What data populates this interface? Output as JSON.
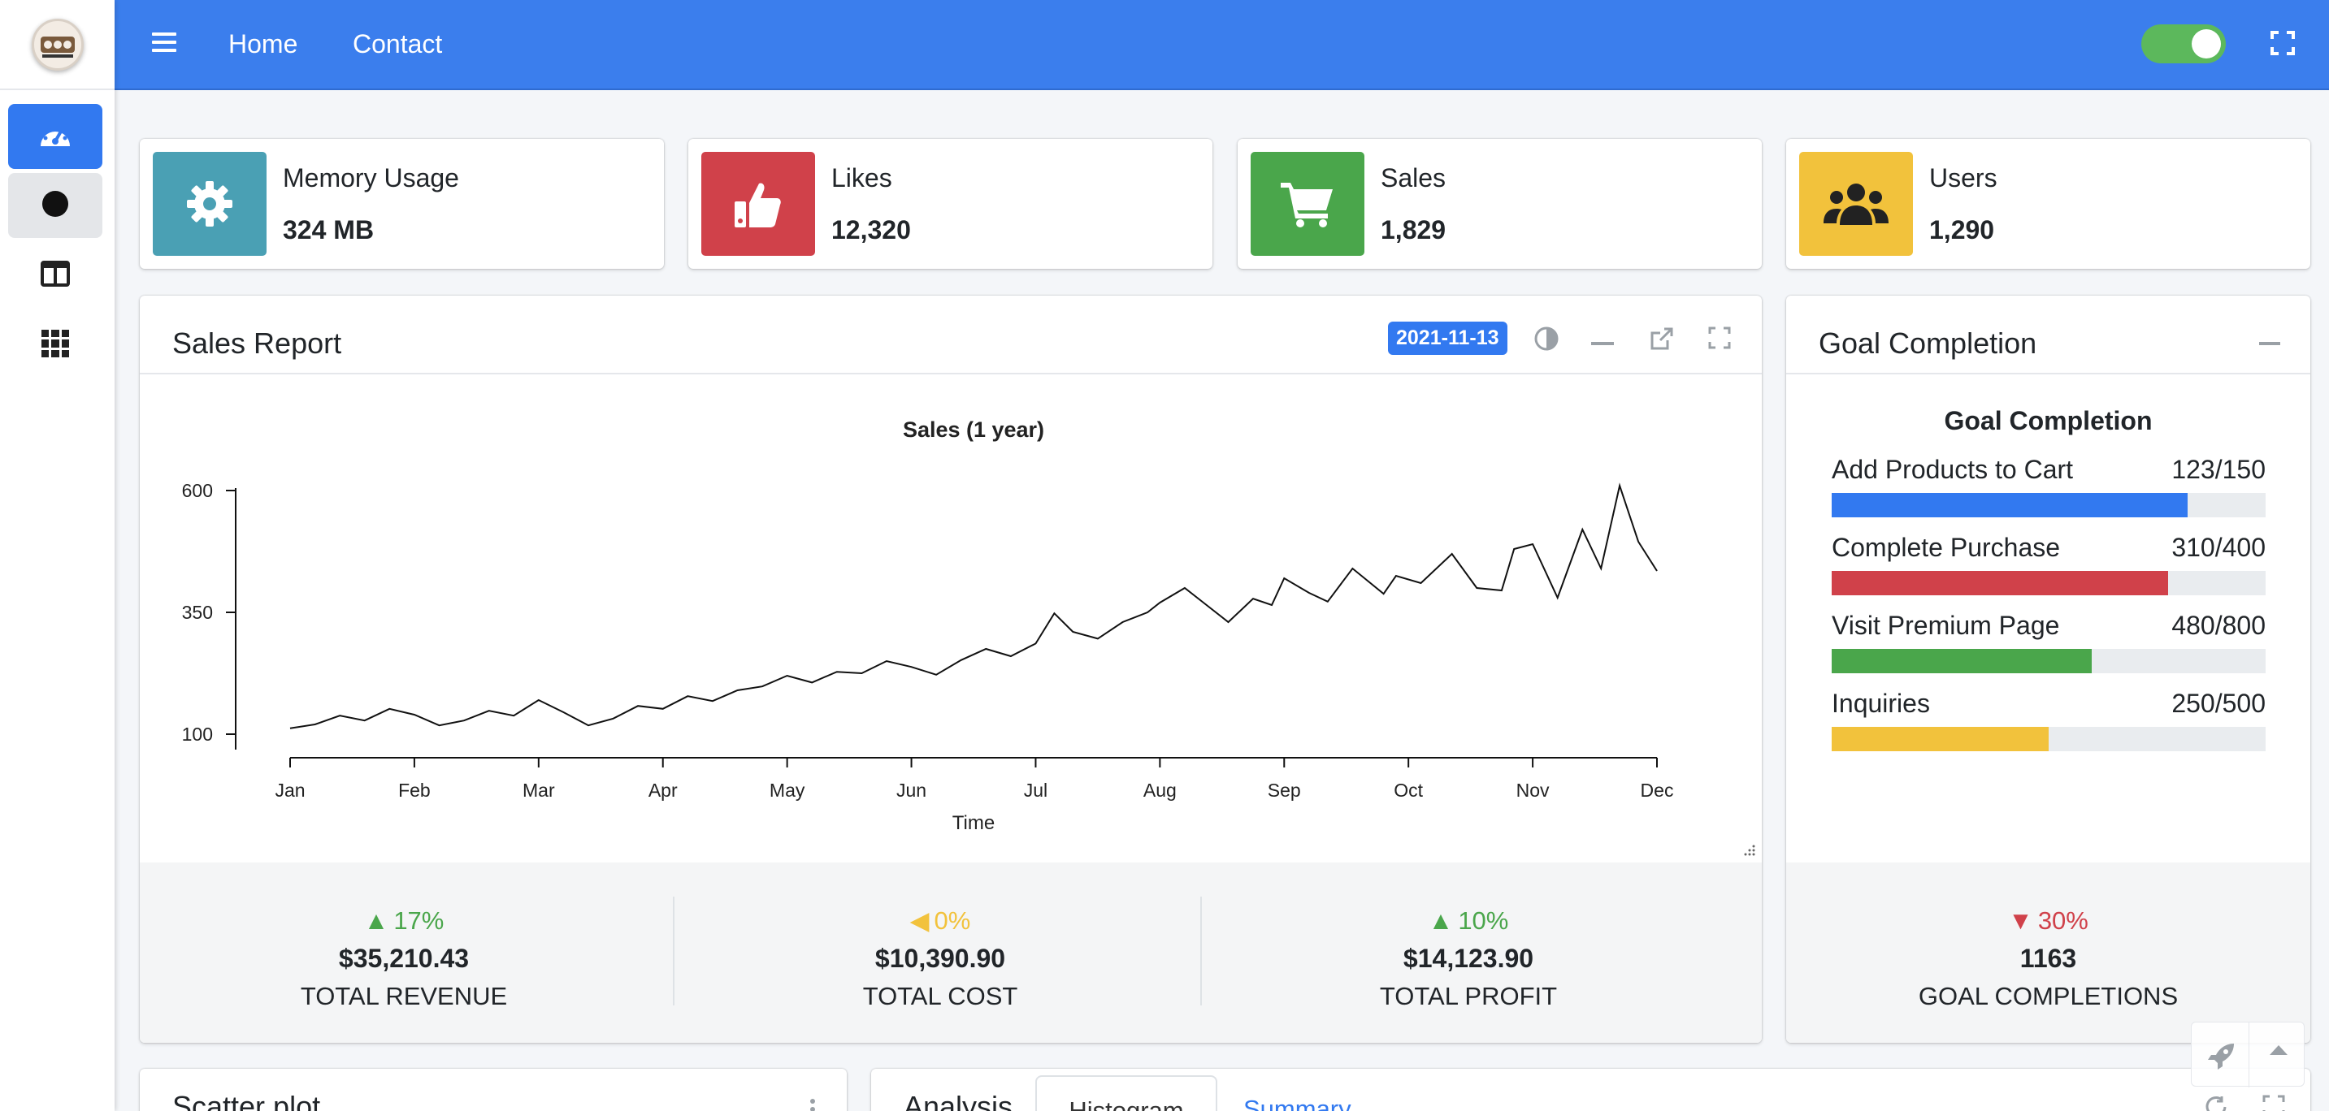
{
  "nav": {
    "home": "Home",
    "contact": "Contact"
  },
  "sidebar": {
    "items": [
      {
        "icon": "dashboard-gauge-icon"
      },
      {
        "icon": "circle-icon"
      },
      {
        "icon": "columns-icon"
      },
      {
        "icon": "grid-icon"
      }
    ]
  },
  "info_boxes": [
    {
      "title": "Memory Usage",
      "value": "324 MB",
      "icon": "gear-icon",
      "color": "#4aa0b4"
    },
    {
      "title": "Likes",
      "value": "12,320",
      "icon": "thumbs-up-icon",
      "color": "#d0414a"
    },
    {
      "title": "Sales",
      "value": "1,829",
      "icon": "shopping-cart-icon",
      "color": "#4aa64b"
    },
    {
      "title": "Users",
      "value": "1,290",
      "icon": "users-icon",
      "color": "#f2c23c"
    }
  ],
  "sales_report": {
    "title": "Sales Report",
    "date_badge": "2021-11-13",
    "stats": [
      {
        "direction": "up",
        "pct": "17%",
        "amount": "$35,210.43",
        "label": "TOTAL REVENUE",
        "color": "#4aa64b"
      },
      {
        "direction": "left",
        "pct": "0%",
        "amount": "$10,390.90",
        "label": "TOTAL COST",
        "color": "#f2c23c"
      },
      {
        "direction": "up",
        "pct": "10%",
        "amount": "$14,123.90",
        "label": "TOTAL PROFIT",
        "color": "#4aa64b"
      }
    ]
  },
  "chart_data": {
    "type": "line",
    "title": "Sales (1 year)",
    "xlabel": "Time",
    "ylabel": "",
    "x_ticks": [
      "Jan",
      "Feb",
      "Mar",
      "Apr",
      "May",
      "Jun",
      "Jul",
      "Aug",
      "Sep",
      "Oct",
      "Nov",
      "Dec"
    ],
    "y_ticks": [
      100,
      350,
      600
    ],
    "xlim": [
      0,
      11
    ],
    "ylim": [
      85,
      605
    ],
    "grid": false,
    "series": [
      {
        "x": [
          0,
          0.2,
          0.4,
          0.6,
          0.8,
          1.0,
          1.2,
          1.4,
          1.6,
          1.8,
          2.0,
          2.2,
          2.4,
          2.6,
          2.8,
          3.0,
          3.2,
          3.4,
          3.6,
          3.8,
          4.0,
          4.2,
          4.4,
          4.6,
          4.8,
          5.0,
          5.2,
          5.4,
          5.6,
          5.8,
          6.0,
          6.15,
          6.3,
          6.5,
          6.7,
          6.9,
          7.0,
          7.2,
          7.35,
          7.55,
          7.75,
          7.9,
          8.0,
          8.2,
          8.35,
          8.55,
          8.8,
          8.9,
          9.1,
          9.35,
          9.55,
          9.75,
          9.85,
          10.0,
          10.2,
          10.4,
          10.55,
          10.7,
          10.85,
          11.0
        ],
        "y": [
          112,
          120,
          138,
          128,
          152,
          140,
          118,
          128,
          148,
          138,
          170,
          145,
          118,
          132,
          158,
          152,
          178,
          168,
          190,
          198,
          220,
          206,
          228,
          225,
          250,
          238,
          222,
          252,
          275,
          260,
          286,
          348,
          310,
          296,
          330,
          350,
          370,
          400,
          370,
          330,
          378,
          365,
          420,
          390,
          372,
          440,
          388,
          425,
          410,
          470,
          400,
          395,
          480,
          490,
          380,
          520,
          440,
          610,
          495,
          435
        ]
      }
    ]
  },
  "goal_completion": {
    "card_title": "Goal Completion",
    "inner_title": "Goal Completion",
    "goals": [
      {
        "label": "Add Products to Cart",
        "value": "123/150",
        "fraction": 0.82,
        "color": "#3279f0"
      },
      {
        "label": "Complete Purchase",
        "value": "310/400",
        "fraction": 0.775,
        "color": "#d0414a"
      },
      {
        "label": "Visit Premium Page",
        "value": "480/800",
        "fraction": 0.6,
        "color": "#4aa64b"
      },
      {
        "label": "Inquiries",
        "value": "250/500",
        "fraction": 0.5,
        "color": "#f2c23c"
      }
    ],
    "stat": {
      "direction": "down",
      "pct": "30%",
      "amount": "1163",
      "label": "GOAL COMPLETIONS",
      "color": "#d0414a"
    }
  },
  "scatter_card": {
    "title": "Scatter plot"
  },
  "analysis_card": {
    "title": "Analysis",
    "tabs": [
      "Histogram",
      "Summary"
    ]
  }
}
